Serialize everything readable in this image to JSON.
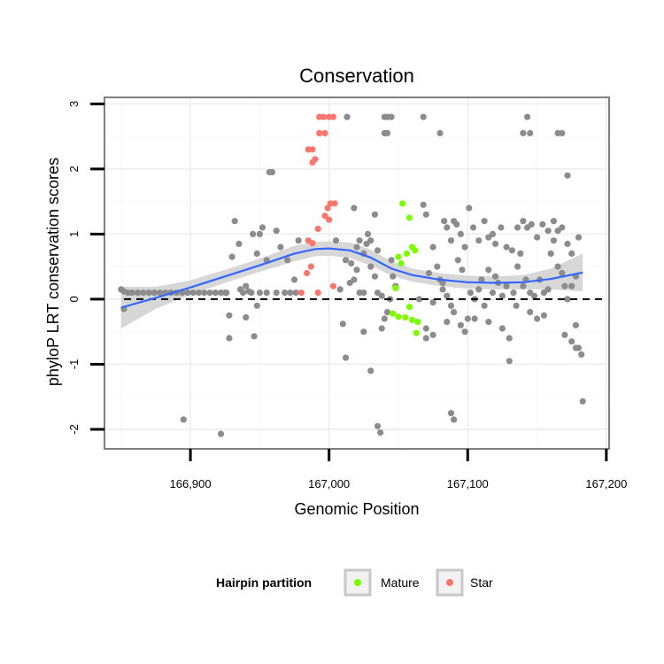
{
  "chart_data": {
    "type": "scatter",
    "title": "Conservation",
    "xlabel": "Genomic Position",
    "ylabel": "phyloP LRT conservation scores",
    "xlim": [
      166838,
      167202
    ],
    "ylim": [
      -2.3,
      3.1
    ],
    "x_ticks": [
      166900,
      167000,
      167100,
      167200
    ],
    "x_tick_labels": [
      "166,900",
      "167,000",
      "167,100",
      "167,200"
    ],
    "y_ticks": [
      -2,
      -1,
      0,
      1,
      2,
      3
    ],
    "y_tick_labels": [
      "-2",
      "-1",
      "0",
      "1",
      "2",
      "3"
    ],
    "reference_line_y": 0,
    "grid": true,
    "legend": {
      "title": "Hairpin partition",
      "position": "bottom",
      "entries": [
        {
          "label": "Mature",
          "color": "#7CFC00"
        },
        {
          "label": "Star",
          "color": "#F8766D"
        }
      ]
    },
    "colors": {
      "other": "#8c8c8c",
      "mature": "#7CFC00",
      "star": "#F8766D",
      "smooth_line": "#3366FF",
      "confidence_band": "#d0d0d0",
      "panel_border": "#7f7f7f"
    },
    "smooth": {
      "x": [
        166850,
        166875,
        166900,
        166925,
        166950,
        166975,
        166990,
        167000,
        167015,
        167030,
        167045,
        167060,
        167080,
        167100,
        167120,
        167140,
        167160,
        167183
      ],
      "y": [
        -0.13,
        0.02,
        0.18,
        0.35,
        0.52,
        0.7,
        0.77,
        0.78,
        0.75,
        0.64,
        0.47,
        0.37,
        0.3,
        0.26,
        0.25,
        0.26,
        0.31,
        0.41
      ],
      "lower": [
        -0.45,
        -0.15,
        0.07,
        0.25,
        0.42,
        0.58,
        0.66,
        0.67,
        0.63,
        0.52,
        0.36,
        0.27,
        0.2,
        0.16,
        0.15,
        0.15,
        0.15,
        0.12
      ],
      "upper": [
        0.19,
        0.19,
        0.29,
        0.45,
        0.62,
        0.82,
        0.88,
        0.89,
        0.87,
        0.76,
        0.58,
        0.47,
        0.4,
        0.36,
        0.35,
        0.37,
        0.47,
        0.7
      ]
    },
    "series": [
      {
        "name": "Mature",
        "points": [
          [
            167053,
            1.47
          ],
          [
            167058,
            1.25
          ],
          [
            167060,
            0.8
          ],
          [
            167056,
            0.7
          ],
          [
            167050,
            0.65
          ],
          [
            167062,
            0.75
          ],
          [
            167052,
            0.55
          ],
          [
            167048,
            0.17
          ],
          [
            167046,
            -0.22
          ],
          [
            167050,
            -0.27
          ],
          [
            167055,
            -0.28
          ],
          [
            167060,
            -0.32
          ],
          [
            167058,
            -0.12
          ],
          [
            167063,
            -0.52
          ],
          [
            167064,
            -0.35
          ]
        ]
      },
      {
        "name": "Star",
        "points": [
          [
            166993,
            2.8
          ],
          [
            166996,
            2.8
          ],
          [
            167000,
            2.8
          ],
          [
            167003,
            2.8
          ],
          [
            166993,
            2.55
          ],
          [
            166997,
            2.55
          ],
          [
            166985,
            2.3
          ],
          [
            166988,
            2.3
          ],
          [
            166990,
            2.15
          ],
          [
            166988,
            2.1
          ],
          [
            167001,
            1.47
          ],
          [
            167004,
            1.47
          ],
          [
            166999,
            1.4
          ],
          [
            166997,
            1.28
          ],
          [
            167000,
            1.22
          ],
          [
            166992,
            1.08
          ],
          [
            166985,
            0.9
          ],
          [
            166988,
            0.86
          ],
          [
            166987,
            0.5
          ],
          [
            166984,
            0.4
          ],
          [
            167003,
            0.2
          ],
          [
            166980,
            0.1
          ],
          [
            166992,
            0.1
          ]
        ]
      },
      {
        "points": [
          [
            166850,
            0.15
          ],
          [
            166852,
            0.12
          ],
          [
            166855,
            0.1
          ],
          [
            166858,
            0.1
          ],
          [
            166862,
            0.1
          ],
          [
            166866,
            0.1
          ],
          [
            166870,
            0.1
          ],
          [
            166874,
            0.1
          ],
          [
            166878,
            0.1
          ],
          [
            166882,
            0.1
          ],
          [
            166886,
            0.1
          ],
          [
            166890,
            0.1
          ],
          [
            166894,
            0.1
          ],
          [
            166898,
            0.1
          ],
          [
            166902,
            0.1
          ],
          [
            166906,
            0.1
          ],
          [
            166910,
            0.1
          ],
          [
            166914,
            0.1
          ],
          [
            166918,
            0.1
          ],
          [
            166922,
            0.1
          ],
          [
            166926,
            0.1
          ],
          [
            166950,
            0.1
          ],
          [
            166955,
            0.1
          ],
          [
            166962,
            0.1
          ],
          [
            166968,
            0.1
          ],
          [
            166972,
            0.1
          ],
          [
            166976,
            0.1
          ],
          [
            166852,
            -0.15
          ],
          [
            166895,
            -1.85
          ],
          [
            166922,
            -2.07
          ],
          [
            166925,
            0.1
          ],
          [
            166928,
            -0.25
          ],
          [
            166930,
            0.65
          ],
          [
            166932,
            1.2
          ],
          [
            166936,
            0.15
          ],
          [
            166938,
            0.1
          ],
          [
            166940,
            -0.28
          ],
          [
            166942,
            0.12
          ],
          [
            166945,
            1.0
          ],
          [
            166946,
            -0.57
          ],
          [
            166948,
            0.7
          ],
          [
            166950,
            1.0
          ],
          [
            166952,
            1.1
          ],
          [
            166955,
            0.6
          ],
          [
            166957,
            1.95
          ],
          [
            166959,
            1.95
          ],
          [
            166962,
            1.05
          ],
          [
            166965,
            0.8
          ],
          [
            166928,
            -0.6
          ],
          [
            166940,
            0.2
          ],
          [
            166944,
            0.1
          ],
          [
            166948,
            -0.1
          ],
          [
            166935,
            0.85
          ],
          [
            166970,
            0.6
          ],
          [
            166975,
            0.3
          ],
          [
            166978,
            0.9
          ],
          [
            167005,
            0.9
          ],
          [
            167008,
            0.15
          ],
          [
            167010,
            -0.38
          ],
          [
            167012,
            0.6
          ],
          [
            167015,
            0.25
          ],
          [
            167012,
            -0.9
          ],
          [
            167016,
            0.55
          ],
          [
            167018,
            1.4
          ],
          [
            167020,
            0.8
          ],
          [
            167022,
            0.9
          ],
          [
            167025,
            0.7
          ],
          [
            167027,
            0.85
          ],
          [
            167030,
            0.5
          ],
          [
            167033,
            0.35
          ],
          [
            167035,
            0.1
          ],
          [
            167038,
            0.05
          ],
          [
            167040,
            -0.3
          ],
          [
            167042,
            -0.2
          ],
          [
            167044,
            0.0
          ],
          [
            167046,
            0.35
          ],
          [
            167013,
            2.8
          ],
          [
            167040,
            2.8
          ],
          [
            167042,
            2.8
          ],
          [
            167045,
            2.8
          ],
          [
            167040,
            2.55
          ],
          [
            167042,
            2.55
          ],
          [
            167033,
            1.3
          ],
          [
            167030,
            0.9
          ],
          [
            167028,
            1.0
          ],
          [
            167020,
            0.45
          ],
          [
            167025,
            -0.5
          ],
          [
            167030,
            -1.1
          ],
          [
            167035,
            -1.95
          ],
          [
            167037,
            -2.05
          ],
          [
            167025,
            0.1
          ],
          [
            167022,
            0.1
          ],
          [
            167018,
            0.3
          ],
          [
            167035,
            0.75
          ],
          [
            167038,
            -0.45
          ],
          [
            167045,
            0.6
          ],
          [
            167048,
            0.2
          ],
          [
            167068,
            1.45
          ],
          [
            167070,
            1.3
          ],
          [
            167072,
            0.4
          ],
          [
            167075,
            0.8
          ],
          [
            167078,
            0.5
          ],
          [
            167080,
            0.3
          ],
          [
            167082,
            0.15
          ],
          [
            167085,
            0.05
          ],
          [
            167088,
            -0.1
          ],
          [
            167090,
            -0.2
          ],
          [
            167093,
            0.6
          ],
          [
            167096,
            0.45
          ],
          [
            167098,
            -0.5
          ],
          [
            167100,
            -0.3
          ],
          [
            167102,
            0.1
          ],
          [
            167105,
            0.0
          ],
          [
            167108,
            0.15
          ],
          [
            167110,
            0.3
          ],
          [
            167112,
            -0.1
          ],
          [
            167115,
            0.45
          ],
          [
            167118,
            0.1
          ],
          [
            167120,
            0.35
          ],
          [
            167122,
            0.25
          ],
          [
            167125,
            0.05
          ],
          [
            167128,
            0.2
          ],
          [
            167130,
            -0.6
          ],
          [
            167133,
            0.1
          ],
          [
            167136,
            0.5
          ],
          [
            167138,
            0.7
          ],
          [
            167140,
            0.2
          ],
          [
            167142,
            0.3
          ],
          [
            167145,
            0.1
          ],
          [
            167148,
            0.05
          ],
          [
            167150,
            -0.3
          ],
          [
            167152,
            0.3
          ],
          [
            167155,
            0.1
          ],
          [
            167158,
            0.15
          ],
          [
            167160,
            0.7
          ],
          [
            167162,
            0.9
          ],
          [
            167165,
            0.5
          ],
          [
            167168,
            0.4
          ],
          [
            167170,
            0.2
          ],
          [
            167172,
            0.0
          ],
          [
            167175,
            0.2
          ],
          [
            167178,
            -0.4
          ],
          [
            167180,
            -0.75
          ],
          [
            167182,
            -0.85
          ],
          [
            167183,
            -1.57
          ],
          [
            167068,
            2.8
          ],
          [
            167080,
            2.55
          ],
          [
            167083,
            1.2
          ],
          [
            167085,
            1.1
          ],
          [
            167088,
            0.9
          ],
          [
            167090,
            1.2
          ],
          [
            167092,
            1.15
          ],
          [
            167095,
            1.0
          ],
          [
            167098,
            0.8
          ],
          [
            167101,
            1.4
          ],
          [
            167104,
            1.1
          ],
          [
            167108,
            0.9
          ],
          [
            167112,
            1.2
          ],
          [
            167115,
            0.95
          ],
          [
            167118,
            1.0
          ],
          [
            167120,
            0.85
          ],
          [
            167124,
            1.1
          ],
          [
            167128,
            0.8
          ],
          [
            167132,
            0.75
          ],
          [
            167136,
            1.1
          ],
          [
            167140,
            1.2
          ],
          [
            167143,
            1.1
          ],
          [
            167146,
            1.15
          ],
          [
            167150,
            0.95
          ],
          [
            167154,
            1.15
          ],
          [
            167158,
            1.05
          ],
          [
            167162,
            1.2
          ],
          [
            167165,
            1.05
          ],
          [
            167168,
            1.1
          ],
          [
            167172,
            0.85
          ],
          [
            167175,
            0.7
          ],
          [
            167178,
            0.35
          ],
          [
            167180,
            0.95
          ],
          [
            167088,
            -1.75
          ],
          [
            167090,
            -1.85
          ],
          [
            167130,
            -0.95
          ],
          [
            167170,
            -0.55
          ],
          [
            167175,
            -0.65
          ],
          [
            167178,
            -0.75
          ],
          [
            167070,
            -0.6
          ],
          [
            167075,
            -0.55
          ],
          [
            167085,
            -0.35
          ],
          [
            167095,
            -0.4
          ],
          [
            167105,
            -0.3
          ],
          [
            167115,
            -0.35
          ],
          [
            167125,
            -0.45
          ],
          [
            167135,
            -0.1
          ],
          [
            167145,
            -0.2
          ],
          [
            167155,
            -0.25
          ],
          [
            167140,
            2.55
          ],
          [
            167143,
            2.8
          ],
          [
            167145,
            2.55
          ],
          [
            167165,
            2.55
          ],
          [
            167168,
            2.55
          ],
          [
            167172,
            1.9
          ],
          [
            167070,
            -0.45
          ],
          [
            167065,
            0.0
          ],
          [
            167075,
            -0.05
          ],
          [
            167082,
            0.25
          ]
        ]
      }
    ]
  }
}
